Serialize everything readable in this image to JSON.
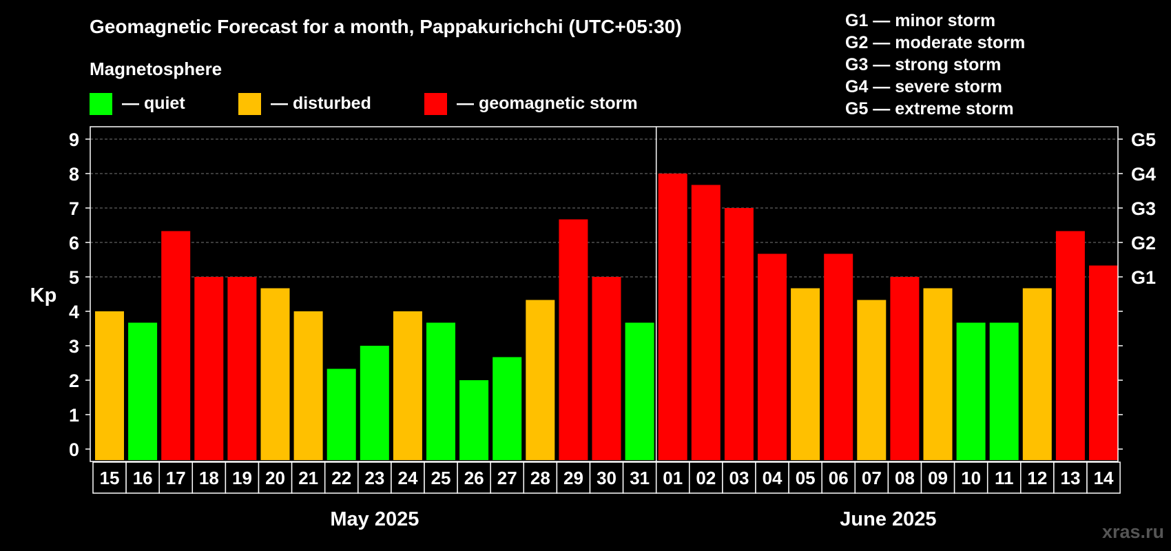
{
  "chart_data": {
    "type": "bar",
    "title": "Geomagnetic Forecast for a month, Pappakurichchi (UTC+05:30)",
    "legend_title": "Magnetosphere",
    "legend": [
      {
        "label": "— quiet",
        "color": "#00ff00"
      },
      {
        "label": "— disturbed",
        "color": "#ffc000"
      },
      {
        "label": "— geomagnetic storm",
        "color": "#ff0000"
      }
    ],
    "storm_scale": [
      "G1 — minor storm",
      "G2 — moderate storm",
      "G3 — strong storm",
      "G4 — severe storm",
      "G5 — extreme storm"
    ],
    "ylabel": "Kp",
    "ylim": [
      0,
      9
    ],
    "yticks": [
      "0",
      "1",
      "2",
      "3",
      "4",
      "5",
      "6",
      "7",
      "8",
      "9"
    ],
    "right_labels": [
      {
        "value": 5,
        "label": "G1"
      },
      {
        "value": 6,
        "label": "G2"
      },
      {
        "value": 7,
        "label": "G3"
      },
      {
        "value": 8,
        "label": "G4"
      },
      {
        "value": 9,
        "label": "G5"
      }
    ],
    "grid": true,
    "categories": [
      "15",
      "16",
      "17",
      "18",
      "19",
      "20",
      "21",
      "22",
      "23",
      "24",
      "25",
      "26",
      "27",
      "28",
      "29",
      "30",
      "31",
      "01",
      "02",
      "03",
      "04",
      "05",
      "06",
      "07",
      "08",
      "09",
      "10",
      "11",
      "12",
      "13",
      "14"
    ],
    "values": [
      4.0,
      3.67,
      6.33,
      5.0,
      5.0,
      4.67,
      4.0,
      2.33,
      3.0,
      4.0,
      3.67,
      2.0,
      2.67,
      4.33,
      6.67,
      5.0,
      3.67,
      8.0,
      7.67,
      7.0,
      5.67,
      4.67,
      5.67,
      4.33,
      5.0,
      4.67,
      3.67,
      3.67,
      4.67,
      6.33,
      5.33
    ],
    "colors": [
      "#ffc000",
      "#00ff00",
      "#ff0000",
      "#ff0000",
      "#ff0000",
      "#ffc000",
      "#ffc000",
      "#00ff00",
      "#00ff00",
      "#ffc000",
      "#00ff00",
      "#00ff00",
      "#00ff00",
      "#ffc000",
      "#ff0000",
      "#ff0000",
      "#00ff00",
      "#ff0000",
      "#ff0000",
      "#ff0000",
      "#ff0000",
      "#ffc000",
      "#ff0000",
      "#ffc000",
      "#ff0000",
      "#ffc000",
      "#00ff00",
      "#00ff00",
      "#ffc000",
      "#ff0000",
      "#ff0000"
    ],
    "months": [
      {
        "label": "May 2025",
        "count": 17
      },
      {
        "label": "June 2025",
        "count": 14
      }
    ]
  },
  "watermark": "xras.ru"
}
